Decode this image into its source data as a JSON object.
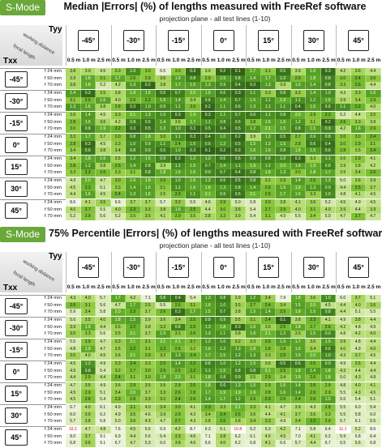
{
  "chart_data": [
    {
      "type": "heatmap",
      "badge": "S-Mode",
      "title": "Median |Errors| (%) of lengths measured with FreeRef software",
      "subtitle": "projection plane - all test lines (1-10)",
      "col_axis_label": "Tyy",
      "row_axis_label": "Txx",
      "header_diag_labels": [
        "working distance",
        "focal length"
      ],
      "col_angles": [
        "-45°",
        "-30°",
        "-15°",
        "0°",
        "15°",
        "30°",
        "45°"
      ],
      "working_distances": [
        "0.5 m",
        "1.0 m",
        "2.5 m"
      ],
      "row_angles": [
        "-45°",
        "-30°",
        "-15°",
        "0°",
        "15°",
        "30°",
        "45°"
      ],
      "focal_lengths": [
        "f 24 mm",
        "f 50 mm",
        "f 70 mm"
      ],
      "values": [
        [
          [
            3.8,
            3.9,
            4.5,
            3.3,
            1.0,
            3.0,
            6.5,
            3.0,
            0.3,
            3.9,
            0.2,
            0.1,
            1.7,
            3.1,
            0.5,
            3.9,
            1.6,
            0.3,
            4.2,
            3.6,
            4.4
          ],
          [
            3.9,
            1.8,
            3.1,
            1.7,
            2.6,
            2.9,
            3.6,
            1.5,
            0.8,
            2.9,
            1.5,
            0.8,
            1.4,
            1.7,
            1.0,
            2.6,
            1.8,
            0.8,
            3.0,
            2.4,
            3.0
          ],
          [
            3.8,
            1.8,
            5.2,
            4.2,
            1.3,
            0.2,
            3.8,
            1.7,
            1.5,
            1.3,
            0.9,
            0.4,
            0.3,
            1.3,
            3.9,
            1.5,
            1.4,
            0.8,
            3.3,
            2.5,
            4.4
          ]
        ],
        [
          [
            1.4,
            0.3,
            3.5,
            3.8,
            1.9,
            1.5,
            0.5,
            0.7,
            2.0,
            1.5,
            0.6,
            0.3,
            1.1,
            3.3,
            0.8,
            3.3,
            1.4,
            1.0,
            4.3,
            3.3,
            1.6
          ],
          [
            3.1,
            2.5,
            1.6,
            4.0,
            2.6,
            2.2,
            1.6,
            1.4,
            3.4,
            0.6,
            1.4,
            0.7,
            1.5,
            1.1,
            1.9,
            1.1,
            1.2,
            1.5,
            3.9,
            3.4,
            2.9
          ],
          [
            1.3,
            1.6,
            3.8,
            2.8,
            0.3,
            1.0,
            0.9,
            1.1,
            2.6,
            0.2,
            1.1,
            0.6,
            1.3,
            1.1,
            1.1,
            0.4,
            1.5,
            0.6,
            1.1,
            2.2,
            4.0
          ]
        ],
        [
          [
            3.6,
            1.4,
            4.5,
            3.3,
            2.1,
            1.3,
            1.0,
            0.3,
            1.9,
            0.3,
            1.1,
            0.7,
            0.6,
            1.1,
            0.8,
            2.0,
            2.9,
            2.3,
            5.2,
            4.4,
            3.5
          ],
          [
            2.8,
            1.5,
            3.6,
            4.2,
            0.8,
            0.5,
            1.4,
            3.6,
            1.7,
            1.1,
            0.8,
            0.6,
            2.8,
            1.6,
            1.6,
            1.2,
            3.1,
            0.2,
            2.6,
            3.3,
            3.9
          ],
          [
            3.0,
            0.8,
            1.9,
            2.2,
            0.3,
            0.5,
            1.3,
            1.0,
            0.3,
            0.5,
            0.4,
            0.5,
            1.2,
            2.1,
            1.5,
            0.8,
            1.5,
            0.9,
            4.2,
            1.6,
            2.9
          ]
        ],
        [
          [
            3.3,
            1.7,
            3.7,
            3.0,
            0.8,
            1.8,
            3.0,
            1.1,
            0.3,
            0.4,
            1.0,
            0.2,
            3.9,
            1.3,
            0.5,
            2.7,
            0.9,
            0.8,
            3.0,
            3.0,
            2.4
          ],
          [
            2.8,
            0.3,
            4.5,
            3.3,
            1.0,
            0.9,
            1.1,
            2.4,
            1.0,
            0.6,
            1.2,
            0.5,
            1.5,
            1.3,
            1.5,
            2.8,
            0.6,
            0.4,
            3.0,
            2.9,
            3.1
          ],
          [
            3.4,
            0.6,
            3.8,
            3.4,
            0.8,
            0.9,
            0.5,
            1.0,
            0.3,
            0.1,
            0.2,
            0.3,
            1.6,
            1.5,
            0.8,
            1.8,
            1.5,
            0.6,
            2.8,
            3.5,
            2.4
          ]
        ],
        [
          [
            3.4,
            1.8,
            1.6,
            3.5,
            1.2,
            1.5,
            0.9,
            0.3,
            1.2,
            1.2,
            0.6,
            0.5,
            0.9,
            0.8,
            1.0,
            0.3,
            3.3,
            1.1,
            3.6,
            2.9,
            4.1
          ],
          [
            2.8,
            1.2,
            3.8,
            2.5,
            1.4,
            0.8,
            3.9,
            1.1,
            1.5,
            0.7,
            1.4,
            1.1,
            1.9,
            1.2,
            2.0,
            1.6,
            1.9,
            0.8,
            3.9,
            3.8,
            4.2
          ],
          [
            3.3,
            2.3,
            2.6,
            3.3,
            3.1,
            0.8,
            1.8,
            1.5,
            1.6,
            0.9,
            0.7,
            0.4,
            0.8,
            1.8,
            1.3,
            3.0,
            1.8,
            1.7,
            3.9,
            3.4,
            2.6
          ]
        ],
        [
          [
            4.9,
            2.0,
            4.7,
            3.0,
            1.6,
            1.8,
            2.5,
            1.0,
            1.6,
            1.2,
            0.6,
            0.5,
            0.8,
            3.2,
            2.9,
            1.4,
            2.5,
            1.3,
            5.0,
            3.6,
            3.9
          ],
          [
            4.5,
            2.3,
            5.1,
            3.3,
            1.4,
            1.5,
            3.1,
            1.1,
            1.6,
            1.8,
            1.3,
            0.8,
            1.4,
            2.6,
            1.6,
            1.9,
            1.3,
            0.9,
            4.4,
            2.5,
            3.7
          ],
          [
            4.4,
            1.6,
            4.5,
            2.4,
            1.3,
            1.6,
            3.5,
            2.3,
            1.1,
            2.1,
            0.9,
            0.5,
            2.1,
            2.5,
            1.7,
            1.5,
            3.3,
            1.0,
            4.8,
            4.1,
            4.5
          ]
        ],
        [
          [
            8.6,
            4.1,
            3.5,
            6.6,
            3.7,
            3.7,
            5.7,
            3.2,
            5.5,
            4.6,
            2.9,
            5.0,
            5.8,
            3.0,
            3.8,
            4.1,
            3.6,
            5.2,
            4.5,
            4.9,
            4.5
          ],
          [
            4.0,
            2.7,
            5.5,
            4.0,
            2.3,
            3.3,
            3.8,
            1.6,
            2.5,
            4.4,
            3.0,
            3.6,
            5.4,
            2.7,
            2.9,
            4.0,
            3.1,
            4.0,
            3.9,
            4.4,
            3.9
          ],
          [
            5.2,
            2.9,
            5.6,
            5.2,
            3.5,
            3.5,
            4.1,
            2.9,
            3.5,
            3.8,
            3.2,
            3.9,
            5.4,
            3.1,
            4.9,
            5.5,
            3.4,
            5.0,
            4.7,
            2.7,
            4.7
          ]
        ]
      ]
    },
    {
      "type": "heatmap",
      "badge": "S-Mode",
      "title": "75% Percentile |Errors| (%) of lengths measured with FreeRef software",
      "subtitle": "projection plane - all test lines (1-10)",
      "col_axis_label": "Tyy",
      "row_axis_label": "Txx",
      "header_diag_labels": [
        "working distance",
        "focal length"
      ],
      "col_angles": [
        "-45°",
        "-30°",
        "-15°",
        "0°",
        "15°",
        "30°",
        "45°"
      ],
      "working_distances": [
        "0.5 m",
        "1.0 m",
        "2.5 m"
      ],
      "row_angles": [
        "-45°",
        "-30°",
        "-15°",
        "0°",
        "15°",
        "30°",
        "45°"
      ],
      "focal_lengths": [
        "f 24 mm",
        "f 50 mm",
        "f 70 mm"
      ],
      "values": [
        [
          [
            4.3,
            4.0,
            5.7,
            1.7,
            4.2,
            7.1,
            0.8,
            0.4,
            5.4,
            1.3,
            0.8,
            3.9,
            1.2,
            3.4,
            7.9,
            1.8,
            3.6,
            1.0,
            6.0,
            3.7,
            5.1
          ],
          [
            2.6,
            3.1,
            5.6,
            4.7,
            1.7,
            3.5,
            5.5,
            2.6,
            3.1,
            1.6,
            1.0,
            3.5,
            2.7,
            2.4,
            3.4,
            1.5,
            2.0,
            4.5,
            4.4,
            4.0,
            3.6
          ],
          [
            5.9,
            3.4,
            5.8,
            2.0,
            2.3,
            3.7,
            2.6,
            0.3,
            1.7,
            1.5,
            0.7,
            3.8,
            1.5,
            1.4,
            2.5,
            1.8,
            1.5,
            0.8,
            4.4,
            5.1,
            5.5
          ]
        ],
        [
          [
            5.0,
            3.5,
            4.0,
            1.8,
            1.5,
            3.9,
            3.6,
            3.4,
            2.5,
            0.8,
            0.9,
            3.5,
            3.1,
            2.4,
            0.1,
            3.8,
            2.3,
            4.1,
            4.9,
            3.8,
            4.4
          ],
          [
            3.9,
            1.9,
            4.4,
            3.5,
            2.2,
            3.8,
            3.2,
            0.8,
            2.5,
            1.3,
            1.8,
            0.3,
            1.6,
            3.5,
            2.5,
            1.8,
            2.7,
            2.6,
            4.2,
            4.8,
            4.9
          ],
          [
            3.5,
            3.3,
            5.6,
            3.5,
            2.1,
            3.7,
            1.5,
            3.1,
            2.6,
            1.3,
            1.1,
            3.8,
            1.6,
            2.1,
            1.2,
            3.5,
            1.5,
            0.9,
            4.8,
            4.2,
            4.0
          ]
        ],
        [
          [
            5.5,
            2.9,
            4.7,
            3.3,
            2.1,
            3.1,
            2.1,
            2.1,
            2.7,
            1.2,
            1.0,
            3.2,
            3.3,
            2.6,
            1.5,
            1.7,
            3.6,
            1.5,
            3.9,
            4.8,
            4.4
          ],
          [
            4.8,
            1.9,
            4.7,
            3.5,
            2.2,
            3.1,
            2.3,
            2.6,
            3.2,
            1.6,
            1.2,
            1.3,
            1.8,
            2.8,
            2.8,
            1.6,
            3.4,
            0.6,
            4.0,
            4.9,
            4.0
          ],
          [
            3.5,
            4.0,
            4.5,
            3.6,
            2.1,
            2.9,
            3.2,
            1.3,
            2.4,
            1.7,
            1.5,
            1.2,
            1.3,
            3.3,
            2.5,
            1.5,
            2.0,
            1.0,
            4.3,
            3.7,
            4.5
          ]
        ],
        [
          [
            4.5,
            1.2,
            4.9,
            3.3,
            2.4,
            3.3,
            2.5,
            1.4,
            2.2,
            0.8,
            1.0,
            1.2,
            1.5,
            3.6,
            0.5,
            0.6,
            2.5,
            0.9,
            4.9,
            3.5,
            4.4
          ],
          [
            4.5,
            0.8,
            5.4,
            3.2,
            2.7,
            3.0,
            2.5,
            2.5,
            2.2,
            1.1,
            1.5,
            0.8,
            0.8,
            2.1,
            2.5,
            1.8,
            1.4,
            1.8,
            4.3,
            4.4,
            4.4
          ],
          [
            4.4,
            2.9,
            4.4,
            2.4,
            3.1,
            3.0,
            1.8,
            2.0,
            3.1,
            1.8,
            0.8,
            0.9,
            3.5,
            2.5,
            3.4,
            1.9,
            2.6,
            1.8,
            5.0,
            4.3,
            4.8
          ]
        ],
        [
          [
            4.7,
            3.5,
            4.9,
            3.6,
            2.9,
            3.5,
            3.5,
            2.9,
            2.6,
            1.8,
            0.6,
            1.3,
            1.5,
            2.9,
            1.6,
            1.4,
            2.6,
            2.9,
            4.8,
            4.0,
            4.1
          ],
          [
            4.5,
            2.9,
            5.1,
            3.4,
            2.0,
            3.7,
            3.3,
            2.6,
            2.8,
            1.7,
            1.9,
            1.9,
            1.9,
            2.8,
            1.6,
            1.4,
            2.6,
            2.9,
            5.5,
            4.3,
            4.5
          ],
          [
            4.5,
            2.6,
            5.4,
            2.9,
            2.8,
            3.3,
            3.2,
            2.4,
            2.6,
            1.4,
            1.7,
            1.2,
            2.6,
            2.3,
            2.6,
            2.4,
            2.6,
            1.5,
            5.6,
            5.4,
            5.1
          ]
        ],
        [
          [
            6.7,
            4.0,
            6.1,
            4.9,
            3.1,
            4.0,
            3.4,
            3.0,
            4.1,
            2.3,
            3.3,
            2.1,
            3.3,
            4.1,
            4.7,
            3.9,
            4.3,
            2.8,
            5.5,
            6.0,
            5.4
          ],
          [
            6.0,
            3.6,
            6.2,
            4.9,
            3.5,
            4.6,
            3.9,
            2.9,
            4.3,
            3.4,
            2.4,
            2.6,
            3.6,
            4.4,
            4.1,
            3.7,
            3.6,
            3.3,
            5.5,
            5.8,
            6.0
          ],
          [
            5.7,
            3.8,
            6.8,
            5.0,
            3.6,
            4.3,
            4.7,
            2.7,
            4.3,
            3.8,
            2.6,
            3.8,
            3.4,
            3.3,
            4.9,
            3.4,
            2.2,
            2.9,
            5.7,
            6.1,
            5.5
          ]
        ],
        [
          [
            10.2,
            4.7,
            4.8,
            7.6,
            4.5,
            5.6,
            6.9,
            4.2,
            8.7,
            6.3,
            5.1,
            10.8,
            6.2,
            5.3,
            4.2,
            7.1,
            5.8,
            6.4,
            11.1,
            5.2,
            8.6
          ],
          [
            8.0,
            3.7,
            9.1,
            6.9,
            4.4,
            5.6,
            5.4,
            3.3,
            4.6,
            7.1,
            3.8,
            6.2,
            6.1,
            4.5,
            4.5,
            7.0,
            4.1,
            6.2,
            5.9,
            6.8,
            6.4
          ],
          [
            6.8,
            3.6,
            9.1,
            6.7,
            4.7,
            5.3,
            6.0,
            3.8,
            4.6,
            6.6,
            4.0,
            6.2,
            6.8,
            4.1,
            6.6,
            5.7,
            4.4,
            6.7,
            6.5,
            5.6,
            6.8
          ]
        ]
      ]
    }
  ]
}
